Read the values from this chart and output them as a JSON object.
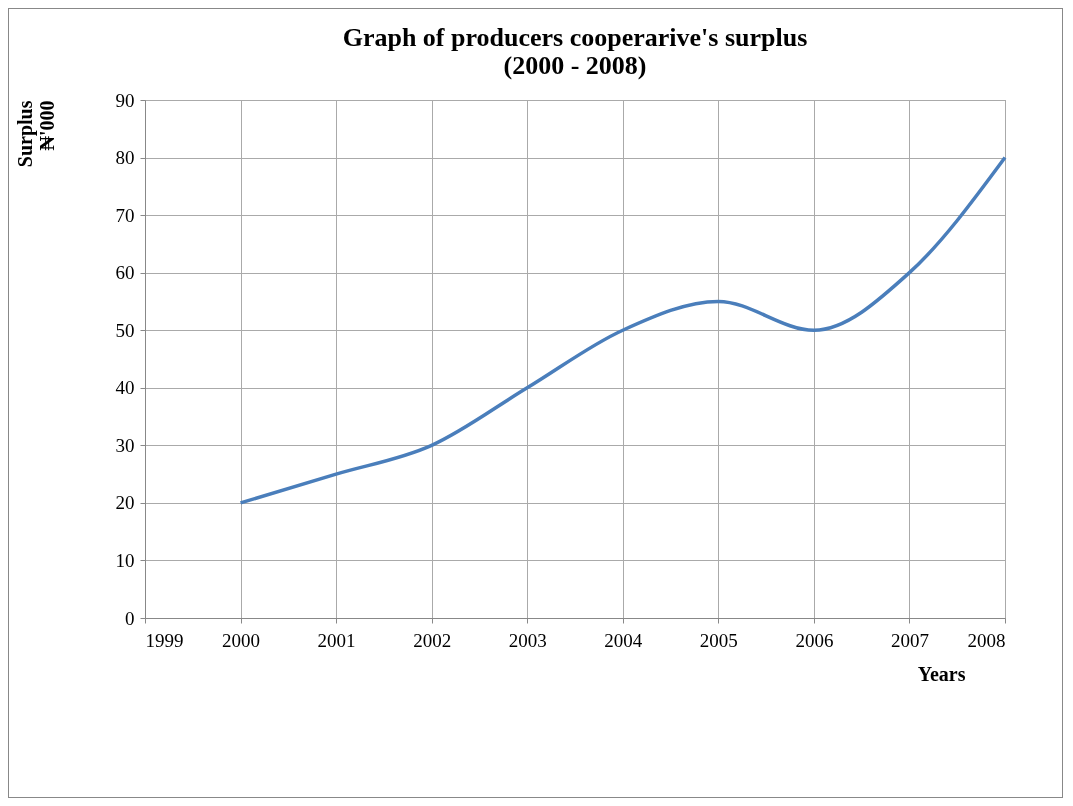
{
  "chart_data": {
    "type": "line",
    "title": "Graph of producers cooperarive's surplus\n(2000 - 2008)",
    "xlabel": "Years",
    "ylabel": "Surplus\n₦'000",
    "x": [
      2000,
      2001,
      2002,
      2003,
      2004,
      2005,
      2006,
      2007,
      2008
    ],
    "series": [
      {
        "color": "#4a7ebb",
        "values": [
          20,
          25,
          30,
          40,
          50,
          55,
          50,
          60,
          80
        ]
      }
    ],
    "xlim": [
      1999,
      2008
    ],
    "xticks": [
      1999,
      2000,
      2001,
      2002,
      2003,
      2004,
      2005,
      2006,
      2007,
      2008
    ],
    "ylim": [
      0,
      90
    ],
    "yticks": [
      0,
      10,
      20,
      30,
      40,
      50,
      60,
      70,
      80,
      90
    ],
    "grid": true,
    "legend": false,
    "marker": "none",
    "line_style": "solid"
  }
}
